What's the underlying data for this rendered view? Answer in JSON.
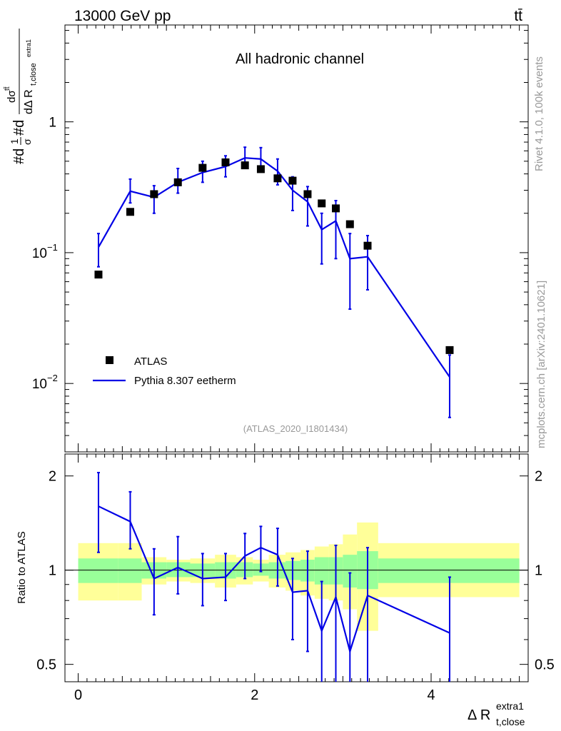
{
  "header": {
    "energy_label": "13000 GeV pp",
    "process_label": "tt̄",
    "channel_label": "All hadronic channel",
    "analysis_label": "(ATLAS_2020_I1801434)",
    "side_rivet": "Rivet 4.1.0,  100k events",
    "side_mcplots": "mcplots.cern.ch [arXiv:2401.10621]"
  },
  "colors": {
    "data": "#000000",
    "mc": "#0000e6",
    "band_inner": "#99ff99",
    "band_outer": "#ffff99"
  },
  "chart_data": [
    {
      "type": "scatter",
      "panel": "main",
      "ylabel": "#d1/σ#dσ^{tt̄}/dΔR_{t,close^{extra1}}",
      "xlabel": "Δ R^{extra1}_{t,close}",
      "yscale": "log",
      "ylim": [
        0.003,
        5.5
      ],
      "xlim": [
        -0.15,
        5.1
      ],
      "y_ticks": [
        {
          "value": 0.01,
          "label": "10",
          "exp": "−2"
        },
        {
          "value": 0.1,
          "label": "10",
          "exp": "−1"
        },
        {
          "value": 1,
          "label": "1",
          "exp": ""
        }
      ],
      "legend": {
        "position": "lower-left",
        "entries": [
          "ATLAS",
          "Pythia 8.307 eetherm"
        ]
      },
      "series": [
        {
          "name": "ATLAS",
          "style": "markers",
          "x": [
            0.23,
            0.59,
            0.86,
            1.13,
            1.41,
            1.67,
            1.89,
            2.07,
            2.26,
            2.43,
            2.6,
            2.76,
            2.92,
            3.08,
            3.28,
            4.21
          ],
          "y": [
            0.068,
            0.205,
            0.28,
            0.345,
            0.445,
            0.49,
            0.465,
            0.435,
            0.37,
            0.355,
            0.28,
            0.238,
            0.218,
            0.165,
            0.113,
            0.018
          ]
        },
        {
          "name": "Pythia 8.307 eetherm",
          "style": "line",
          "x": [
            0.23,
            0.59,
            0.86,
            1.13,
            1.41,
            1.67,
            1.89,
            2.07,
            2.26,
            2.43,
            2.6,
            2.76,
            2.92,
            3.08,
            3.28,
            4.21
          ],
          "y": [
            0.11,
            0.295,
            0.265,
            0.345,
            0.41,
            0.455,
            0.53,
            0.52,
            0.42,
            0.3,
            0.245,
            0.15,
            0.175,
            0.09,
            0.093,
            0.0112
          ],
          "err_lo": [
            0.078,
            0.24,
            0.2,
            0.285,
            0.345,
            0.38,
            0.44,
            0.43,
            0.33,
            0.21,
            0.16,
            0.082,
            0.09,
            0.037,
            0.052,
            0.0055
          ],
          "err_hi": [
            0.14,
            0.365,
            0.325,
            0.44,
            0.5,
            0.55,
            0.64,
            0.635,
            0.52,
            0.38,
            0.32,
            0.2,
            0.25,
            0.14,
            0.135,
            0.0165
          ]
        }
      ]
    },
    {
      "type": "line",
      "panel": "ratio",
      "ylabel": "Ratio to ATLAS",
      "yscale": "log",
      "ylim": [
        0.44,
        2.35
      ],
      "y_ticks": [
        {
          "value": 0.5,
          "label": "0.5"
        },
        {
          "value": 1,
          "label": "1"
        },
        {
          "value": 2,
          "label": "2"
        }
      ],
      "x_ticks": [
        {
          "value": 0,
          "label": "0"
        },
        {
          "value": 2,
          "label": "2"
        },
        {
          "value": 4,
          "label": "4"
        }
      ],
      "bins": [
        0,
        0.45,
        0.72,
        1.0,
        1.27,
        1.55,
        1.79,
        1.98,
        2.16,
        2.35,
        2.52,
        2.68,
        2.84,
        3.0,
        3.16,
        3.4,
        5.0
      ],
      "band_inner": {
        "lo": [
          0.91,
          0.91,
          0.94,
          0.95,
          0.95,
          0.94,
          0.95,
          0.96,
          0.94,
          0.93,
          0.92,
          0.9,
          0.9,
          0.88,
          0.87,
          0.91
        ],
        "hi": [
          1.09,
          1.09,
          1.06,
          1.06,
          1.05,
          1.06,
          1.06,
          1.05,
          1.06,
          1.07,
          1.08,
          1.1,
          1.1,
          1.12,
          1.15,
          1.09
        ]
      },
      "band_outer": {
        "lo": [
          0.8,
          0.8,
          0.9,
          0.92,
          0.91,
          0.88,
          0.9,
          0.92,
          0.88,
          0.86,
          0.83,
          0.81,
          0.8,
          0.75,
          0.64,
          0.82
        ],
        "hi": [
          1.22,
          1.22,
          1.1,
          1.08,
          1.09,
          1.12,
          1.1,
          1.08,
          1.12,
          1.14,
          1.16,
          1.19,
          1.21,
          1.3,
          1.42,
          1.22
        ]
      },
      "series": [
        {
          "name": "Pythia 8.307 eetherm / ATLAS",
          "x": [
            0.23,
            0.59,
            0.86,
            1.13,
            1.41,
            1.67,
            1.89,
            2.07,
            2.26,
            2.43,
            2.6,
            2.76,
            2.92,
            3.08,
            3.28,
            4.21
          ],
          "y": [
            1.6,
            1.43,
            0.94,
            1.02,
            0.94,
            0.95,
            1.11,
            1.18,
            1.12,
            0.85,
            0.86,
            0.64,
            0.82,
            0.55,
            0.83,
            0.63
          ],
          "err_lo": [
            1.14,
            1.17,
            0.72,
            0.84,
            0.77,
            0.8,
            0.94,
            0.99,
            0.89,
            0.6,
            0.55,
            0.34,
            0.42,
            0.22,
            0.41,
            0.31
          ],
          "err_hi": [
            2.05,
            1.78,
            1.17,
            1.28,
            1.13,
            1.13,
            1.31,
            1.38,
            1.36,
            1.09,
            1.15,
            0.92,
            1.2,
            0.98,
            1.18,
            0.95
          ]
        }
      ]
    }
  ]
}
